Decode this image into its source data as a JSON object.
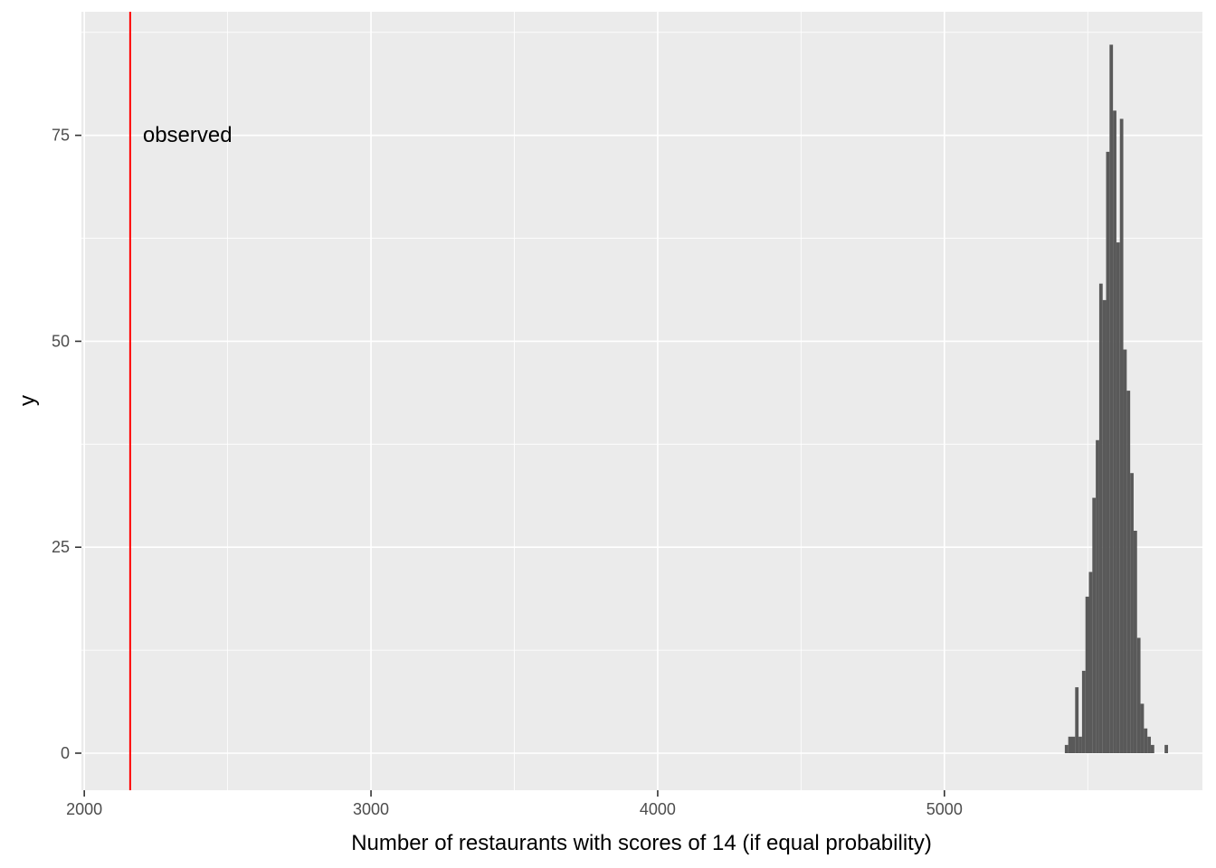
{
  "chart_data": {
    "type": "bar",
    "title": "",
    "xlabel": "Number of restaurants with scores of 14 (if equal probability)",
    "ylabel": "y",
    "xlim": [
      1990,
      5900
    ],
    "ylim": [
      -4.5,
      90
    ],
    "xticks": [
      2000,
      3000,
      4000,
      5000
    ],
    "yticks": [
      0,
      25,
      50,
      75
    ],
    "bin_width": 12,
    "grid": true,
    "colors": {
      "panel": "#ebebeb",
      "grid": "#ffffff",
      "bar": "#595959",
      "vline": "#ff0000"
    },
    "bins": [
      {
        "x": 5426,
        "y": 1
      },
      {
        "x": 5438,
        "y": 2
      },
      {
        "x": 5450,
        "y": 2
      },
      {
        "x": 5462,
        "y": 8
      },
      {
        "x": 5474,
        "y": 2
      },
      {
        "x": 5486,
        "y": 10
      },
      {
        "x": 5498,
        "y": 19
      },
      {
        "x": 5510,
        "y": 22
      },
      {
        "x": 5522,
        "y": 31
      },
      {
        "x": 5534,
        "y": 38
      },
      {
        "x": 5546,
        "y": 57
      },
      {
        "x": 5558,
        "y": 55
      },
      {
        "x": 5570,
        "y": 73
      },
      {
        "x": 5582,
        "y": 86
      },
      {
        "x": 5594,
        "y": 78
      },
      {
        "x": 5606,
        "y": 62
      },
      {
        "x": 5618,
        "y": 77
      },
      {
        "x": 5630,
        "y": 49
      },
      {
        "x": 5642,
        "y": 44
      },
      {
        "x": 5654,
        "y": 34
      },
      {
        "x": 5666,
        "y": 27
      },
      {
        "x": 5678,
        "y": 14
      },
      {
        "x": 5690,
        "y": 6
      },
      {
        "x": 5702,
        "y": 3
      },
      {
        "x": 5714,
        "y": 2
      },
      {
        "x": 5726,
        "y": 1
      },
      {
        "x": 5774,
        "y": 1
      }
    ],
    "vline": {
      "x": 2160,
      "label": "observed",
      "label_y": 75
    }
  }
}
